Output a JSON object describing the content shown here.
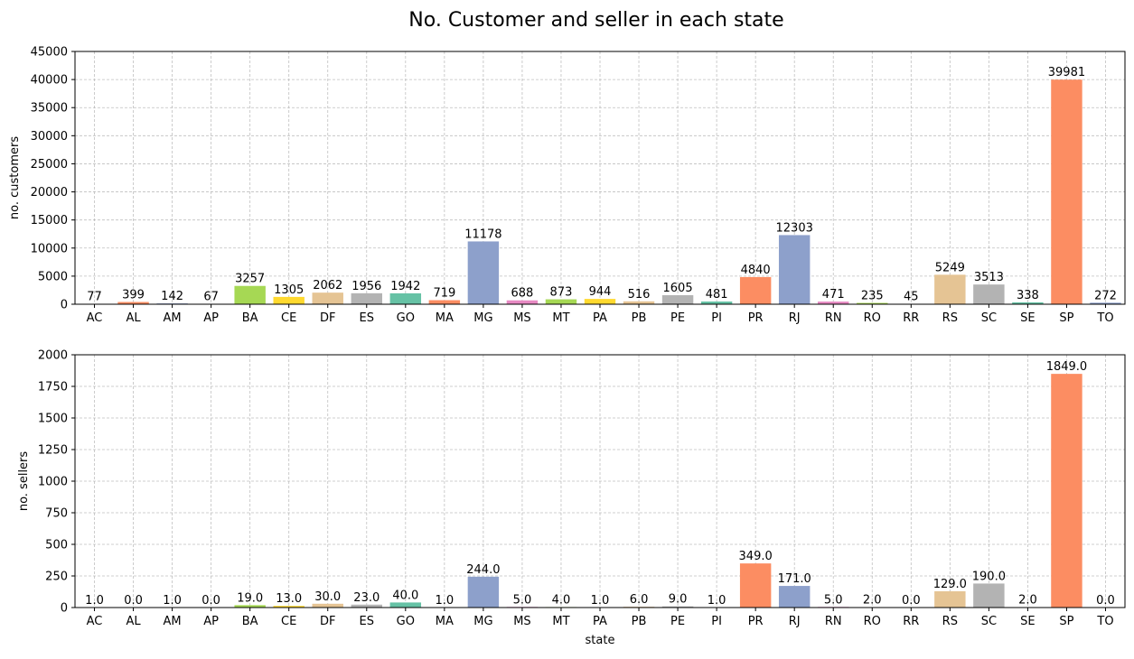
{
  "figure": {
    "title": "No. Customer and seller in each state"
  },
  "palette": [
    "#66c2a5",
    "#fc8d62",
    "#8da0cb",
    "#e78ac3",
    "#a6d854",
    "#ffd92f",
    "#e5c494",
    "#b3b3b3"
  ],
  "chart_data": [
    {
      "type": "bar",
      "ylabel": "no. customers",
      "xlabel": "",
      "ylim": [
        0,
        45000
      ],
      "yticks": [
        0,
        5000,
        10000,
        15000,
        20000,
        25000,
        30000,
        35000,
        40000,
        45000
      ],
      "grid": true,
      "label_format": "int",
      "categories": [
        "AC",
        "AL",
        "AM",
        "AP",
        "BA",
        "CE",
        "DF",
        "ES",
        "GO",
        "MA",
        "MG",
        "MS",
        "MT",
        "PA",
        "PB",
        "PE",
        "PI",
        "PR",
        "RJ",
        "RN",
        "RO",
        "RR",
        "RS",
        "SC",
        "SE",
        "SP",
        "TO"
      ],
      "values": [
        77,
        399,
        142,
        67,
        3257,
        1305,
        2062,
        1956,
        1942,
        719,
        11178,
        688,
        873,
        944,
        516,
        1605,
        481,
        4840,
        12303,
        471,
        235,
        45,
        5249,
        3513,
        338,
        39981,
        272
      ]
    },
    {
      "type": "bar",
      "ylabel": "no. sellers",
      "xlabel": "state",
      "ylim": [
        0,
        2000
      ],
      "yticks": [
        0,
        250,
        500,
        750,
        1000,
        1250,
        1500,
        1750,
        2000
      ],
      "grid": true,
      "label_format": "float1",
      "categories": [
        "AC",
        "AL",
        "AM",
        "AP",
        "BA",
        "CE",
        "DF",
        "ES",
        "GO",
        "MA",
        "MG",
        "MS",
        "MT",
        "PA",
        "PB",
        "PE",
        "PI",
        "PR",
        "RJ",
        "RN",
        "RO",
        "RR",
        "RS",
        "SC",
        "SE",
        "SP",
        "TO"
      ],
      "values": [
        1.0,
        0.0,
        1.0,
        0.0,
        19.0,
        13.0,
        30.0,
        23.0,
        40.0,
        1.0,
        244.0,
        5.0,
        4.0,
        1.0,
        6.0,
        9.0,
        1.0,
        349.0,
        171.0,
        5.0,
        2.0,
        0.0,
        129.0,
        190.0,
        2.0,
        1849.0,
        0.0
      ]
    }
  ]
}
